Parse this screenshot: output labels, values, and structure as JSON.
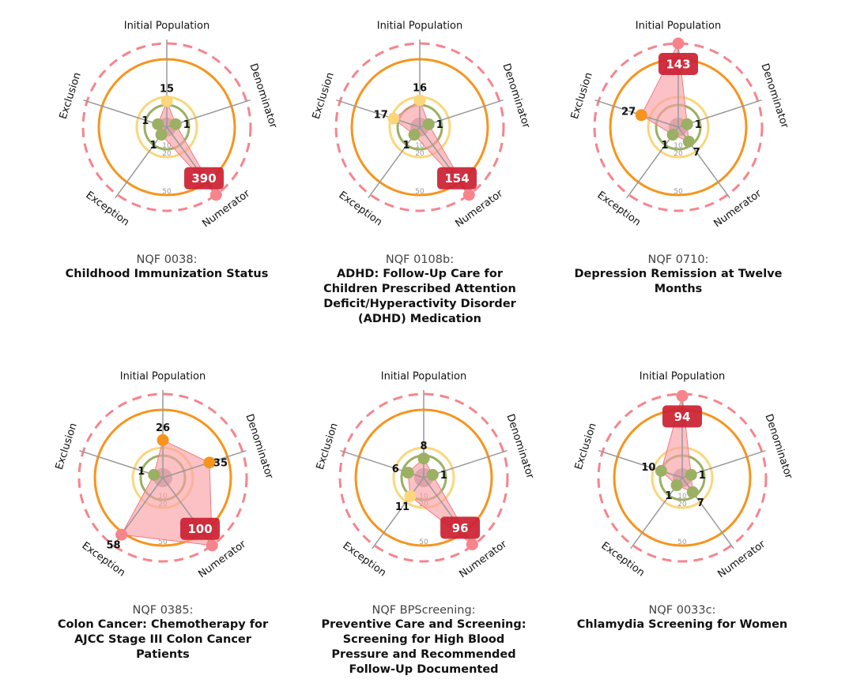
{
  "axes": [
    "Initial Population",
    "Denominator",
    "Numerator",
    "Exception",
    "Exclusion"
  ],
  "ring_ticks": [
    "10",
    "20",
    "50"
  ],
  "colors": {
    "outer_dashed": "#f7848c",
    "orange_ring": "#f7941d",
    "yellow_ring": "#fbd67a",
    "green_ring": "#9bb062",
    "fill": "#f9a0a6",
    "badge": "#cc1f31",
    "axis_line": "#999999",
    "dot_green": "#9bb062",
    "dot_yellow": "#fbd67a",
    "dot_orange": "#f7941d",
    "dot_red": "#f7848c"
  },
  "charts": [
    {
      "nqf": "NQF 0038:",
      "title": "Childhood Immunization Status",
      "values": {
        "Initial Population": 15,
        "Denominator": 1,
        "Numerator": 390,
        "Exception": 1,
        "Exclusion": 1
      },
      "labels": [
        "15",
        "1",
        "390",
        "1",
        "1"
      ]
    },
    {
      "nqf": "NQF 0108b:",
      "title": "ADHD: Follow-Up Care for Children Prescribed Attention Deficit/Hyperactivity Disorder (ADHD) Medication",
      "values": {
        "Initial Population": 16,
        "Denominator": 1,
        "Numerator": 154,
        "Exception": 1,
        "Exclusion": 17
      },
      "labels": [
        "16",
        "1",
        "154",
        "1",
        "17"
      ]
    },
    {
      "nqf": "NQF 0710:",
      "title": "Depression Remission at Twelve Months",
      "values": {
        "Initial Population": 143,
        "Denominator": 1,
        "Numerator": 7,
        "Exception": 1,
        "Exclusion": 27
      },
      "labels": [
        "143",
        "1",
        "7",
        "1",
        "27"
      ]
    },
    {
      "nqf": "NQF 0385:",
      "title": "Colon Cancer: Chemotherapy for AJCC Stage III Colon Cancer Patients",
      "values": {
        "Initial Population": 26,
        "Denominator": 35,
        "Numerator": 100,
        "Exception": 58,
        "Exclusion": 1
      },
      "labels": [
        "26",
        "35",
        "100",
        "58",
        "1"
      ]
    },
    {
      "nqf": "NQF BPScreening:",
      "title": "Preventive Care and Screening: Screening for High Blood Pressure and Recommended Follow-Up Documented",
      "values": {
        "Initial Population": 8,
        "Denominator": 1,
        "Numerator": 96,
        "Exception": 11,
        "Exclusion": 6
      },
      "labels": [
        "8",
        "1",
        "96",
        "11",
        "6"
      ]
    },
    {
      "nqf": "NQF 0033c:",
      "title": "Chlamydia Screening for Women",
      "values": {
        "Initial Population": 94,
        "Denominator": 1,
        "Numerator": 7,
        "Exception": 1,
        "Exclusion": 10
      },
      "labels": [
        "94",
        "1",
        "7",
        "1",
        "10"
      ]
    }
  ],
  "chart_data": [
    {
      "type": "radar",
      "title": "NQF 0038: Childhood Immunization Status",
      "categories": [
        "Initial Population",
        "Denominator",
        "Numerator",
        "Exception",
        "Exclusion"
      ],
      "values": [
        15,
        1,
        390,
        1,
        1
      ],
      "rings": [
        10,
        20,
        50
      ]
    },
    {
      "type": "radar",
      "title": "NQF 0108b: ADHD: Follow-Up Care for Children Prescribed Attention Deficit/Hyperactivity Disorder (ADHD) Medication",
      "categories": [
        "Initial Population",
        "Denominator",
        "Numerator",
        "Exception",
        "Exclusion"
      ],
      "values": [
        16,
        1,
        154,
        1,
        17
      ],
      "rings": [
        10,
        20,
        50
      ]
    },
    {
      "type": "radar",
      "title": "NQF 0710: Depression Remission at Twelve Months",
      "categories": [
        "Initial Population",
        "Denominator",
        "Numerator",
        "Exception",
        "Exclusion"
      ],
      "values": [
        143,
        1,
        7,
        1,
        27
      ],
      "rings": [
        10,
        20,
        50
      ]
    },
    {
      "type": "radar",
      "title": "NQF 0385: Colon Cancer: Chemotherapy for AJCC Stage III Colon Cancer Patients",
      "categories": [
        "Initial Population",
        "Denominator",
        "Numerator",
        "Exception",
        "Exclusion"
      ],
      "values": [
        26,
        35,
        100,
        58,
        1
      ],
      "rings": [
        10,
        20,
        50
      ]
    },
    {
      "type": "radar",
      "title": "NQF BPScreening: Preventive Care and Screening: Screening for High Blood Pressure and Recommended Follow-Up Documented",
      "categories": [
        "Initial Population",
        "Denominator",
        "Numerator",
        "Exception",
        "Exclusion"
      ],
      "values": [
        8,
        1,
        96,
        11,
        6
      ],
      "rings": [
        10,
        20,
        50
      ]
    },
    {
      "type": "radar",
      "title": "NQF 0033c: Chlamydia Screening for Women",
      "categories": [
        "Initial Population",
        "Denominator",
        "Numerator",
        "Exception",
        "Exclusion"
      ],
      "values": [
        94,
        1,
        7,
        1,
        10
      ],
      "rings": [
        10,
        20,
        50
      ]
    }
  ]
}
